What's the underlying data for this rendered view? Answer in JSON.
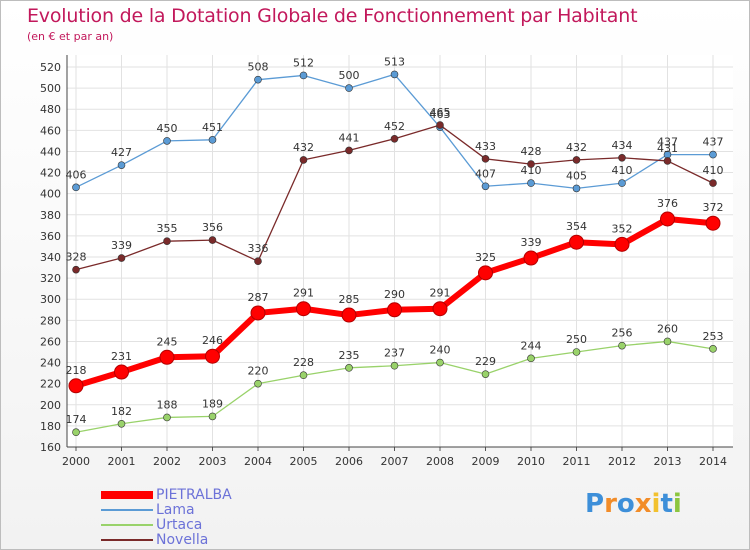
{
  "chart_data": {
    "type": "line",
    "title": "Evolution de la Dotation Globale de Fonctionnement par Habitant",
    "subtitle": "(en € et par an)",
    "x": [
      2000,
      2001,
      2002,
      2003,
      2004,
      2005,
      2006,
      2007,
      2008,
      2009,
      2010,
      2011,
      2012,
      2013,
      2014
    ],
    "ylim": [
      160,
      520
    ],
    "yticks": [
      160,
      180,
      200,
      220,
      240,
      260,
      280,
      300,
      320,
      340,
      360,
      380,
      400,
      420,
      440,
      460,
      480,
      500,
      520
    ],
    "grid": true,
    "legend_position": "bottom-left",
    "series": [
      {
        "name": "PIETRALBA",
        "color": "#ff0000",
        "values": [
          218,
          231,
          245,
          246,
          287,
          291,
          285,
          290,
          291,
          325,
          339,
          354,
          352,
          376,
          372
        ]
      },
      {
        "name": "Lama",
        "color": "#5b9bd5",
        "values": [
          406,
          427,
          450,
          451,
          508,
          512,
          500,
          513,
          463,
          407,
          410,
          405,
          410,
          437,
          437
        ]
      },
      {
        "name": "Urtaca",
        "color": "#99d26a",
        "values": [
          174,
          182,
          188,
          189,
          220,
          228,
          235,
          237,
          240,
          229,
          244,
          250,
          256,
          260,
          253
        ]
      },
      {
        "name": "Novella",
        "color": "#7a2a2a",
        "values": [
          328,
          339,
          355,
          356,
          336,
          432,
          441,
          452,
          465,
          433,
          428,
          432,
          434,
          431,
          410
        ]
      }
    ]
  },
  "branding": {
    "logo_text": "Proxiti",
    "logo_colors": [
      "#3d8fd9",
      "#f28c28",
      "#3d8fd9",
      "#f28c28",
      "#f2c12e",
      "#3d8fd9",
      "#8cc63f"
    ]
  }
}
